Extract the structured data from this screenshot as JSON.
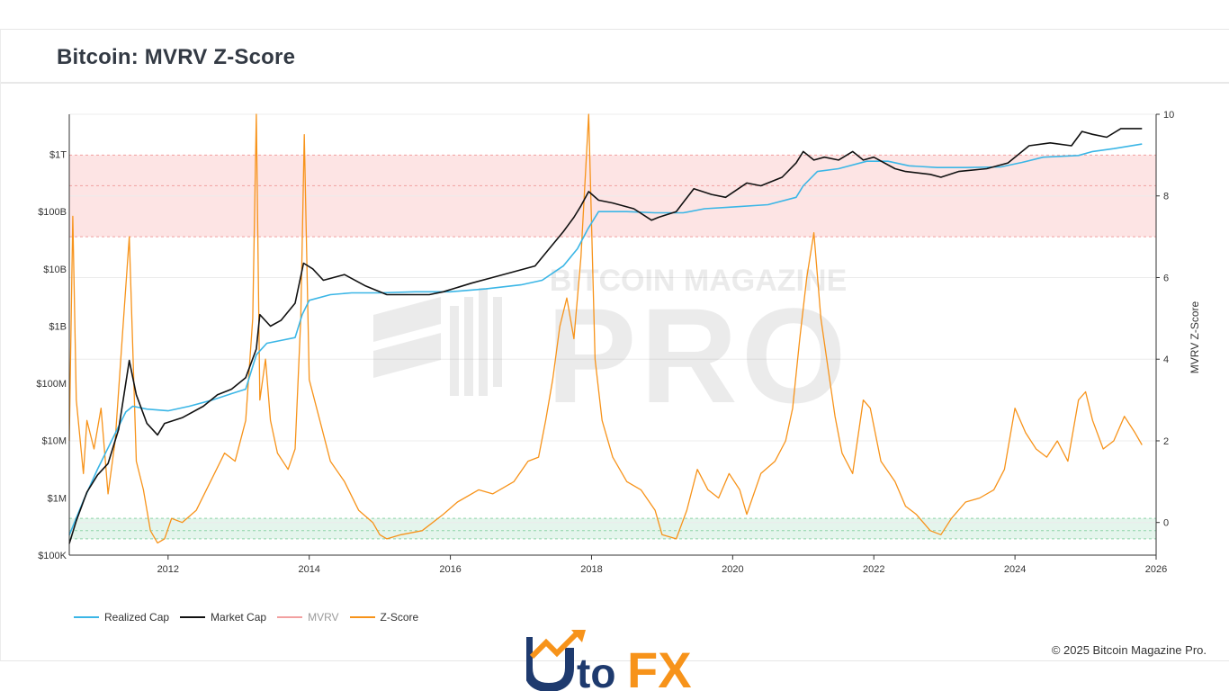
{
  "page": {
    "title": "Bitcoin: MVRV Z-Score"
  },
  "legend": {
    "items": [
      {
        "label": "Realized Cap",
        "color": "#3bb6e6"
      },
      {
        "label": "Market Cap",
        "color": "#111111"
      },
      {
        "label": "MVRV",
        "color": "#f2a0a0"
      },
      {
        "label": "Z-Score",
        "color": "#f7931a"
      }
    ]
  },
  "watermark": {
    "line1": "BITCOIN MAGAZINE",
    "line2": "PRO"
  },
  "copyright": "© 2025 Bitcoin Magazine Pro.",
  "logo": {
    "text_left": "Uto",
    "text_right": "FX",
    "colors": [
      "#1e3a6e",
      "#f7931a"
    ]
  },
  "chart_data": {
    "type": "line",
    "title": "Bitcoin: MVRV Z-Score",
    "x_range": [
      2010.6,
      2026.0
    ],
    "x_ticks": [
      {
        "value": 2012,
        "label": "2012"
      },
      {
        "value": 2014,
        "label": "2014"
      },
      {
        "value": 2016,
        "label": "2016"
      },
      {
        "value": 2018,
        "label": "2018"
      },
      {
        "value": 2020,
        "label": "2020"
      },
      {
        "value": 2022,
        "label": "2022"
      },
      {
        "value": 2024,
        "label": "2024"
      },
      {
        "value": 2026,
        "label": "2026"
      }
    ],
    "y_left": {
      "scale": "log",
      "range_log10": [
        5,
        12.7
      ],
      "ticks": [
        {
          "log10": 5,
          "label": "$100K"
        },
        {
          "log10": 6,
          "label": "$1M"
        },
        {
          "log10": 7,
          "label": "$10M"
        },
        {
          "log10": 8,
          "label": "$100M"
        },
        {
          "log10": 9,
          "label": "$1B"
        },
        {
          "log10": 10,
          "label": "$10B"
        },
        {
          "log10": 11,
          "label": "$100B"
        },
        {
          "log10": 12,
          "label": "$1T"
        }
      ]
    },
    "y_right": {
      "label": "MVRV Z-Score",
      "range": [
        -0.8,
        10
      ],
      "ticks": [
        {
          "value": 0,
          "label": "0"
        },
        {
          "value": 2,
          "label": "2"
        },
        {
          "value": 4,
          "label": "4"
        },
        {
          "value": 6,
          "label": "6"
        },
        {
          "value": 8,
          "label": "8"
        },
        {
          "value": 10,
          "label": "10"
        }
      ]
    },
    "bands": [
      {
        "name": "red-zone",
        "from": 7.0,
        "to": 9.0,
        "mid": 8.25,
        "color": "#fde4e4",
        "line_color": "#f0a0a0"
      },
      {
        "name": "green-zone",
        "from": -0.4,
        "to": 0.1,
        "mid": -0.2,
        "color": "#e4f5ec",
        "line_color": "#8fd4a8"
      }
    ],
    "series": [
      {
        "name": "Realized Cap",
        "axis": "left",
        "color": "#3bb6e6",
        "x": [
          2010.6,
          2010.8,
          2011.0,
          2011.2,
          2011.4,
          2011.5,
          2011.7,
          2012.0,
          2012.3,
          2012.6,
          2012.9,
          2013.1,
          2013.25,
          2013.4,
          2013.6,
          2013.8,
          2013.9,
          2014.0,
          2014.3,
          2014.6,
          2015.0,
          2015.5,
          2016.0,
          2016.5,
          2017.0,
          2017.3,
          2017.6,
          2017.8,
          2017.95,
          2018.1,
          2018.5,
          2018.9,
          2019.3,
          2019.6,
          2020.0,
          2020.5,
          2020.9,
          2021.0,
          2021.2,
          2021.5,
          2021.9,
          2022.2,
          2022.5,
          2022.9,
          2023.3,
          2023.8,
          2024.1,
          2024.4,
          2024.9,
          2025.1,
          2025.4,
          2025.8
        ],
        "y_log10": [
          5.35,
          5.95,
          6.5,
          7.0,
          7.5,
          7.6,
          7.55,
          7.52,
          7.6,
          7.7,
          7.82,
          7.9,
          8.5,
          8.7,
          8.75,
          8.8,
          9.2,
          9.45,
          9.55,
          9.58,
          9.58,
          9.6,
          9.6,
          9.65,
          9.72,
          9.8,
          10.05,
          10.35,
          10.7,
          11.0,
          11.0,
          10.98,
          10.98,
          11.05,
          11.08,
          11.12,
          11.25,
          11.45,
          11.7,
          11.75,
          11.88,
          11.88,
          11.8,
          11.77,
          11.77,
          11.78,
          11.86,
          11.95,
          11.98,
          12.05,
          12.1,
          12.18
        ]
      },
      {
        "name": "Market Cap",
        "axis": "left",
        "color": "#111111",
        "x": [
          2010.6,
          2010.7,
          2010.85,
          2011.0,
          2011.15,
          2011.3,
          2011.45,
          2011.55,
          2011.7,
          2011.85,
          2011.95,
          2012.2,
          2012.5,
          2012.7,
          2012.9,
          2013.1,
          2013.25,
          2013.3,
          2013.45,
          2013.6,
          2013.8,
          2013.92,
          2014.05,
          2014.2,
          2014.5,
          2014.8,
          2015.0,
          2015.1,
          2015.4,
          2015.7,
          2015.9,
          2016.3,
          2016.6,
          2016.9,
          2017.2,
          2017.4,
          2017.6,
          2017.75,
          2017.85,
          2017.96,
          2018.1,
          2018.3,
          2018.6,
          2018.85,
          2018.95,
          2019.2,
          2019.45,
          2019.7,
          2019.9,
          2020.2,
          2020.4,
          2020.7,
          2020.9,
          2021.0,
          2021.15,
          2021.3,
          2021.5,
          2021.7,
          2021.85,
          2022.0,
          2022.3,
          2022.45,
          2022.8,
          2022.95,
          2023.2,
          2023.6,
          2023.9,
          2024.2,
          2024.5,
          2024.8,
          2024.95,
          2025.1,
          2025.3,
          2025.5,
          2025.7,
          2025.8
        ],
        "y_log10": [
          5.2,
          5.6,
          6.1,
          6.4,
          6.6,
          7.2,
          8.4,
          7.8,
          7.3,
          7.1,
          7.3,
          7.4,
          7.6,
          7.8,
          7.9,
          8.1,
          8.6,
          9.2,
          9.0,
          9.1,
          9.4,
          10.1,
          10.0,
          9.8,
          9.9,
          9.7,
          9.6,
          9.55,
          9.55,
          9.55,
          9.6,
          9.75,
          9.85,
          9.95,
          10.05,
          10.35,
          10.65,
          10.9,
          11.1,
          11.35,
          11.2,
          11.15,
          11.05,
          10.85,
          10.9,
          11.0,
          11.4,
          11.3,
          11.25,
          11.5,
          11.45,
          11.6,
          11.85,
          12.05,
          11.9,
          11.95,
          11.9,
          12.05,
          11.9,
          11.95,
          11.75,
          11.7,
          11.65,
          11.6,
          11.7,
          11.75,
          11.85,
          12.15,
          12.2,
          12.15,
          12.4,
          12.35,
          12.3,
          12.45,
          12.45,
          12.45
        ]
      },
      {
        "name": "Z-Score",
        "axis": "right",
        "color": "#f7931a",
        "x": [
          2010.6,
          2010.65,
          2010.7,
          2010.8,
          2010.85,
          2010.95,
          2011.05,
          2011.15,
          2011.25,
          2011.35,
          2011.45,
          2011.55,
          2011.65,
          2011.75,
          2011.85,
          2011.95,
          2012.05,
          2012.2,
          2012.4,
          2012.6,
          2012.8,
          2012.95,
          2013.1,
          2013.2,
          2013.25,
          2013.3,
          2013.38,
          2013.45,
          2013.55,
          2013.7,
          2013.8,
          2013.88,
          2013.93,
          2014.0,
          2014.15,
          2014.3,
          2014.5,
          2014.7,
          2014.9,
          2015.0,
          2015.1,
          2015.3,
          2015.6,
          2015.9,
          2016.1,
          2016.4,
          2016.6,
          2016.9,
          2017.1,
          2017.25,
          2017.35,
          2017.45,
          2017.55,
          2017.65,
          2017.75,
          2017.85,
          2017.96,
          2018.05,
          2018.15,
          2018.3,
          2018.5,
          2018.7,
          2018.9,
          2019.0,
          2019.2,
          2019.35,
          2019.5,
          2019.65,
          2019.8,
          2019.95,
          2020.1,
          2020.2,
          2020.4,
          2020.6,
          2020.75,
          2020.85,
          2020.95,
          2021.05,
          2021.15,
          2021.25,
          2021.35,
          2021.45,
          2021.55,
          2021.7,
          2021.85,
          2021.95,
          2022.1,
          2022.3,
          2022.45,
          2022.6,
          2022.8,
          2022.95,
          2023.1,
          2023.3,
          2023.5,
          2023.7,
          2023.85,
          2024.0,
          2024.15,
          2024.3,
          2024.45,
          2024.6,
          2024.75,
          2024.9,
          2025.0,
          2025.1,
          2025.25,
          2025.4,
          2025.55,
          2025.7,
          2025.8
        ],
        "y": [
          2.0,
          7.5,
          3.0,
          1.2,
          2.5,
          1.8,
          2.8,
          0.7,
          2.0,
          4.5,
          7.0,
          1.5,
          0.8,
          -0.2,
          -0.5,
          -0.4,
          0.1,
          0.0,
          0.3,
          1.0,
          1.7,
          1.5,
          2.5,
          5.0,
          10.0,
          3.0,
          4.0,
          2.5,
          1.7,
          1.3,
          1.8,
          5.0,
          9.5,
          3.5,
          2.5,
          1.5,
          1.0,
          0.3,
          0.0,
          -0.3,
          -0.4,
          -0.3,
          -0.2,
          0.2,
          0.5,
          0.8,
          0.7,
          1.0,
          1.5,
          1.6,
          2.5,
          3.5,
          4.8,
          5.5,
          4.5,
          6.5,
          10.0,
          4.0,
          2.5,
          1.6,
          1.0,
          0.8,
          0.3,
          -0.3,
          -0.4,
          0.3,
          1.3,
          0.8,
          0.6,
          1.2,
          0.8,
          0.2,
          1.2,
          1.5,
          2.0,
          2.8,
          4.5,
          6.0,
          7.1,
          5.0,
          3.8,
          2.6,
          1.7,
          1.2,
          3.0,
          2.8,
          1.5,
          1.0,
          0.4,
          0.2,
          -0.2,
          -0.3,
          0.1,
          0.5,
          0.6,
          0.8,
          1.3,
          2.8,
          2.2,
          1.8,
          1.6,
          2.0,
          1.5,
          3.0,
          3.2,
          2.5,
          1.8,
          2.0,
          2.6,
          2.2,
          1.9
        ]
      }
    ]
  }
}
